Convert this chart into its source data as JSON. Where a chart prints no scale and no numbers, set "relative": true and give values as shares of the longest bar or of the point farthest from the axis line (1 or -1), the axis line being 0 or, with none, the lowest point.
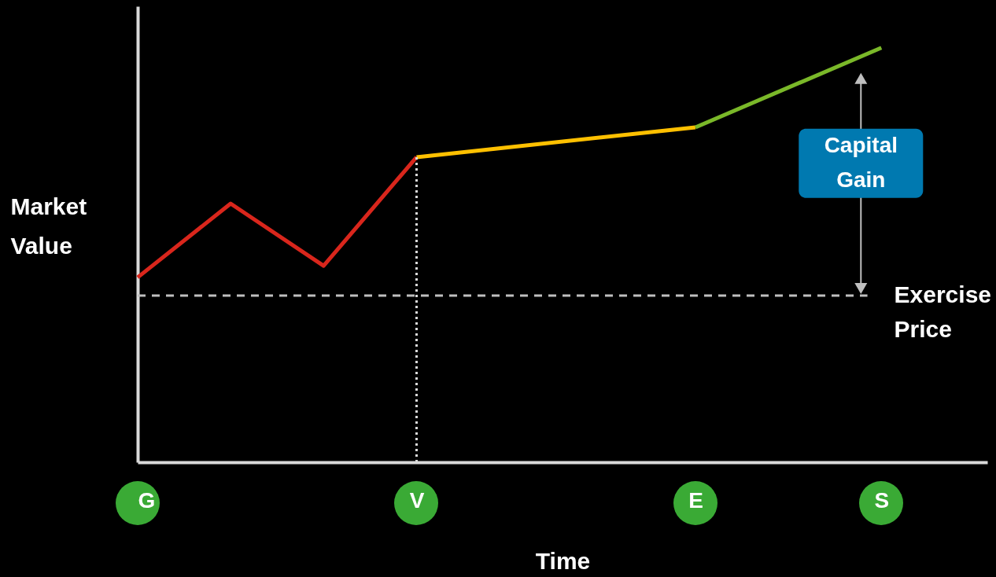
{
  "chart_data": {
    "type": "line",
    "relative": true,
    "xlabel": "Time",
    "ylabel": "Market Value",
    "categories": [
      "G",
      null,
      null,
      "V",
      null,
      null,
      "E",
      null,
      "S"
    ],
    "tick_labels": "x",
    "series": [
      {
        "color": "#d9261c",
        "values": [
          0.446,
          0.624,
          0.474,
          0.736,
          null,
          null,
          null,
          null,
          null
        ]
      },
      {
        "color": "#ffc000",
        "values": [
          null,
          null,
          null,
          0.736,
          null,
          null,
          0.808,
          null,
          null
        ]
      },
      {
        "color": "#7ab829",
        "values": [
          null,
          null,
          null,
          null,
          null,
          null,
          0.808,
          null,
          1
        ]
      }
    ],
    "ref_lines": [
      {
        "axis": "y",
        "value": 0.402,
        "label": "Exercise Price",
        "color": "#bfbfbf",
        "line_style": "dashed"
      },
      {
        "axis": "x",
        "value": "V",
        "color": "#d9d9d9",
        "line_style": "dotted"
      }
    ],
    "annotations": [
      "Capital Gain"
    ],
    "grid": false,
    "line_style": "solid",
    "marker": "none"
  }
}
